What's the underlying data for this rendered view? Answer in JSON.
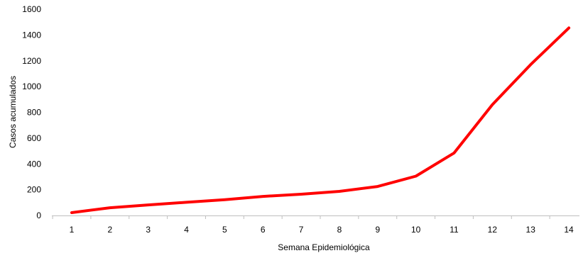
{
  "chart_data": {
    "type": "line",
    "xlabel": "Semana Epidemiológica",
    "ylabel": "Casos acumulados",
    "categories": [
      "1",
      "2",
      "3",
      "4",
      "5",
      "6",
      "7",
      "8",
      "9",
      "10",
      "11",
      "12",
      "13",
      "14"
    ],
    "series": [
      {
        "values": [
          22,
          60,
          82,
          102,
          122,
          148,
          165,
          187,
          225,
          305,
          485,
          860,
          1170,
          1455
        ]
      }
    ],
    "ylim": [
      0,
      1600
    ],
    "yticks": [
      0,
      200,
      400,
      600,
      800,
      1000,
      1200,
      1400,
      1600
    ],
    "grid": false,
    "legend": "none",
    "line_color": "#ff0000",
    "axis_color": "#bfbfbf"
  }
}
